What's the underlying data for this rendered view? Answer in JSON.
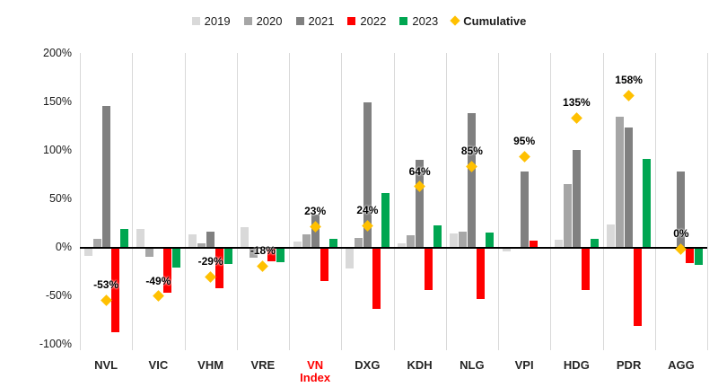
{
  "chart_data": {
    "type": "bar",
    "title": "",
    "xlabel": "",
    "ylabel": "",
    "ylim": [
      -100,
      200
    ],
    "grid": "vertical-separators-only",
    "legend_position": "top-center",
    "y_ticks": [
      {
        "label": "200%",
        "value": 200
      },
      {
        "label": "150%",
        "value": 150
      },
      {
        "label": "100%",
        "value": 100
      },
      {
        "label": "50%",
        "value": 50
      },
      {
        "label": "0%",
        "value": 0
      },
      {
        "label": "-50%",
        "value": -50
      },
      {
        "label": "-100%",
        "value": -100
      }
    ],
    "categories": [
      {
        "label": "NVL",
        "color": "#262626"
      },
      {
        "label": "VIC",
        "color": "#262626"
      },
      {
        "label": "VHM",
        "color": "#262626"
      },
      {
        "label": "VRE",
        "color": "#262626"
      },
      {
        "label": "VN\nIndex",
        "color": "#ff0000"
      },
      {
        "label": "DXG",
        "color": "#262626"
      },
      {
        "label": "KDH",
        "color": "#262626"
      },
      {
        "label": "NLG",
        "color": "#262626"
      },
      {
        "label": "VPI",
        "color": "#262626"
      },
      {
        "label": "HDG",
        "color": "#262626"
      },
      {
        "label": "PDR",
        "color": "#262626"
      },
      {
        "label": "AGG",
        "color": "#262626"
      }
    ],
    "series": [
      {
        "name": "2019",
        "color": "#d9d9d9",
        "values": [
          -7,
          20,
          15,
          22,
          7,
          -20,
          6,
          16,
          -3,
          9,
          25,
          null
        ]
      },
      {
        "name": "2020",
        "color": "#a6a6a6",
        "values": [
          10,
          -8,
          6,
          -9,
          15,
          11,
          14,
          18,
          null,
          67,
          136,
          null
        ]
      },
      {
        "name": "2021",
        "color": "#808080",
        "values": [
          147,
          null,
          18,
          null,
          35,
          151,
          92,
          140,
          80,
          102,
          125,
          80
        ]
      },
      {
        "name": "2022",
        "color": "#ff0000",
        "values": [
          -86,
          -45,
          -41,
          -13,
          -33,
          -62,
          -43,
          -52,
          8,
          -43,
          -80,
          -15
        ]
      },
      {
        "name": "2023",
        "color": "#00a651",
        "values": [
          20,
          -19,
          -16,
          -14,
          10,
          57,
          24,
          17,
          2,
          10,
          93,
          -17
        ]
      }
    ],
    "cumulative": {
      "name": "Cumulative",
      "color": "#ffc000",
      "marker": "diamond",
      "values": [
        -53,
        -49,
        -29,
        -18,
        23,
        24,
        64,
        85,
        95,
        135,
        158,
        0
      ],
      "labels": [
        "-53%",
        "-49%",
        "-29%",
        "-18%",
        "23%",
        "24%",
        "64%",
        "85%",
        "95%",
        "135%",
        "158%",
        "0%"
      ]
    }
  }
}
